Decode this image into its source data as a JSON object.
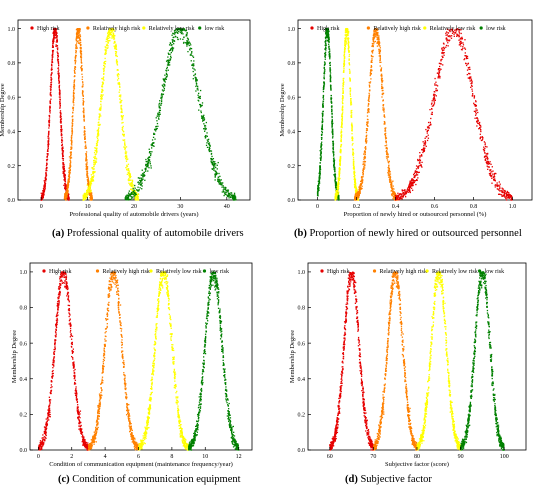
{
  "legend_labels": [
    "High risk",
    "Relatively high risk",
    "Relatively low risk",
    "low risk"
  ],
  "series_colors": [
    "#e60000",
    "#ff8000",
    "#ffff00",
    "#008000"
  ],
  "ylabel": "Membership Degree",
  "chart_data": [
    {
      "type": "scatter",
      "panel_letter": "(a)",
      "caption": "Professional quality of automobile drivers",
      "xlabel": "Professional quality of automobile drivers (years)",
      "ylabel": "Membership Degree",
      "xlim": [
        -5,
        45
      ],
      "ylim": [
        0,
        1.05
      ],
      "xticks": [
        0,
        10,
        20,
        30,
        40
      ],
      "yticks": [
        0.0,
        0.2,
        0.4,
        0.6,
        0.8,
        1.0
      ],
      "legend_labels": [
        "High risk",
        "Relatively high risk",
        "Relatively low risk",
        "low risk"
      ],
      "legend_placement": "top",
      "grid": false,
      "series": [
        {
          "name": "High risk",
          "color": "#e60000",
          "center": 3,
          "sigma": 1.0,
          "x_range": [
            0,
            6
          ]
        },
        {
          "name": "Relatively high risk",
          "color": "#ff8000",
          "center": 8,
          "sigma": 1.0,
          "x_range": [
            5,
            11
          ]
        },
        {
          "name": "Relatively low risk",
          "color": "#ffff00",
          "center": 15,
          "sigma": 2.0,
          "x_range": [
            9,
            21
          ]
        },
        {
          "name": "low risk",
          "color": "#008000",
          "center": 30,
          "sigma": 4.0,
          "x_range": [
            18,
            42
          ]
        }
      ]
    },
    {
      "type": "scatter",
      "panel_letter": "(b)",
      "caption": "Proportion of newly hired or outsourced personnel",
      "xlabel": "Proportion of newly hired or outsourced personnel (%)",
      "ylabel": "Membership Degree",
      "xlim": [
        -0.1,
        1.1
      ],
      "ylim": [
        0,
        1.05
      ],
      "xticks": [
        0.0,
        0.2,
        0.4,
        0.6,
        0.8,
        1.0
      ],
      "yticks": [
        0.0,
        0.2,
        0.4,
        0.6,
        0.8,
        1.0
      ],
      "legend_labels": [
        "High risk",
        "Relatively high risk",
        "Relatively low risk",
        "low risk"
      ],
      "legend_placement": "top",
      "grid": false,
      "series": [
        {
          "name": "low risk",
          "color": "#008000",
          "center": 0.05,
          "sigma": 0.02,
          "x_range": [
            0.0,
            0.11
          ]
        },
        {
          "name": "Relatively low risk",
          "color": "#ffff00",
          "center": 0.15,
          "sigma": 0.02,
          "x_range": [
            0.09,
            0.21
          ]
        },
        {
          "name": "Relatively high risk",
          "color": "#ff8000",
          "center": 0.3,
          "sigma": 0.035,
          "x_range": [
            0.19,
            0.41
          ]
        },
        {
          "name": "High risk",
          "color": "#e60000",
          "center": 0.7,
          "sigma": 0.1,
          "x_range": [
            0.4,
            1.0
          ]
        }
      ]
    },
    {
      "type": "scatter",
      "panel_letter": "(c)",
      "caption": "Condition of communication equipment",
      "xlabel": "Condition of communication equipment (maintenance frequency/year)",
      "ylabel": "Membership Degree",
      "xlim": [
        -0.5,
        12.8
      ],
      "ylim": [
        0,
        1.05
      ],
      "xticks": [
        0,
        2,
        4,
        6,
        8,
        10,
        12
      ],
      "yticks": [
        0.0,
        0.2,
        0.4,
        0.6,
        0.8,
        1.0
      ],
      "legend_labels": [
        "High risk",
        "Relatively high risk",
        "Relatively low risk",
        "low risk"
      ],
      "legend_placement": "top",
      "grid": false,
      "series": [
        {
          "name": "High risk",
          "color": "#e60000",
          "center": 1.5,
          "sigma": 0.5,
          "x_range": [
            0.0,
            3.0
          ]
        },
        {
          "name": "Relatively high risk",
          "color": "#ff8000",
          "center": 4.5,
          "sigma": 0.5,
          "x_range": [
            3.0,
            6.0
          ]
        },
        {
          "name": "Relatively low risk",
          "color": "#ffff00",
          "center": 7.5,
          "sigma": 0.5,
          "x_range": [
            6.0,
            9.0
          ]
        },
        {
          "name": "low risk",
          "color": "#008000",
          "center": 10.5,
          "sigma": 0.5,
          "x_range": [
            9.0,
            12.0
          ]
        }
      ]
    },
    {
      "type": "scatter",
      "panel_letter": "(d)",
      "caption": "Subjective factor",
      "xlabel": "Subjective factor (score)",
      "ylabel": "Membership Degree",
      "xlim": [
        55,
        105
      ],
      "ylim": [
        0,
        1.05
      ],
      "xticks": [
        60,
        70,
        80,
        90,
        100
      ],
      "yticks": [
        0.0,
        0.2,
        0.4,
        0.6,
        0.8,
        1.0
      ],
      "legend_labels": [
        "High risk",
        "Relatively high risk",
        "Relatively low risk",
        "low risk"
      ],
      "legend_placement": "top",
      "grid": false,
      "series": [
        {
          "name": "High risk",
          "color": "#e60000",
          "center": 65,
          "sigma": 1.7,
          "x_range": [
            60,
            70
          ]
        },
        {
          "name": "Relatively high risk",
          "color": "#ff8000",
          "center": 75,
          "sigma": 1.7,
          "x_range": [
            70,
            80
          ]
        },
        {
          "name": "Relatively low risk",
          "color": "#ffff00",
          "center": 85,
          "sigma": 1.7,
          "x_range": [
            80,
            90
          ]
        },
        {
          "name": "low risk",
          "color": "#008000",
          "center": 95,
          "sigma": 1.7,
          "x_range": [
            90,
            100
          ]
        }
      ]
    }
  ]
}
